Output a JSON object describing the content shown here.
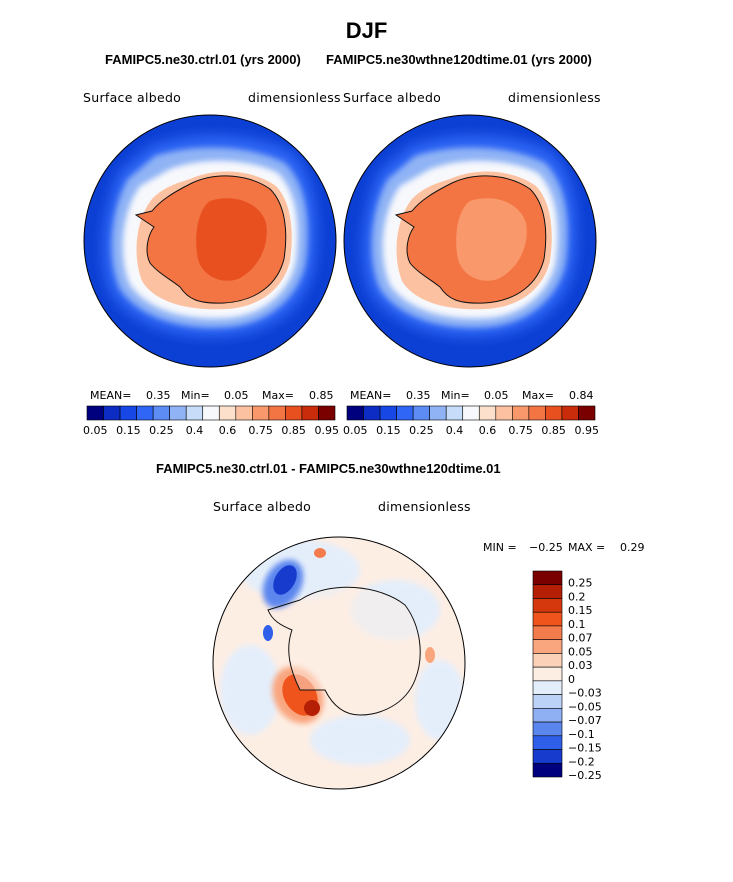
{
  "figure": {
    "title": "DJF",
    "top_left_subtitle": "FAMIPC5.ne30.ctrl.01 (yrs 2000)",
    "top_right_subtitle": "FAMIPC5.ne30wthne120dtime.01 (yrs 2000)",
    "diff_subtitle": "FAMIPC5.ne30.ctrl.01 - FAMIPC5.ne30wthne120dtime.01"
  },
  "panels": {
    "left": {
      "variable": "Surface albedo",
      "units": "dimensionless",
      "mean_label": "MEAN=",
      "mean": "0.35",
      "min_label": "Min=",
      "min": "0.05",
      "max_label": "Max=",
      "max": "0.85"
    },
    "right": {
      "variable": "Surface albedo",
      "units": "dimensionless",
      "mean_label": "MEAN=",
      "mean": "0.35",
      "min_label": "Min=",
      "min": "0.05",
      "max_label": "Max=",
      "max": "0.84"
    },
    "diff": {
      "variable": "Surface albedo",
      "units": "dimensionless",
      "min_label": "MIN =",
      "min": "−0.25",
      "max_label": "MAX =",
      "max": "0.29"
    }
  },
  "chart_data": [
    {
      "type": "heatmap",
      "projection": "south-polar-stereographic",
      "title": "FAMIPC5.ne30.ctrl.01 (yrs 2000)",
      "variable": "Surface albedo",
      "units": "dimensionless",
      "mean": 0.35,
      "min": 0.05,
      "max": 0.85,
      "colorbar_levels": [
        0.05,
        0.1,
        0.15,
        0.2,
        0.25,
        0.3,
        0.4,
        0.5,
        0.6,
        0.65,
        0.75,
        0.8,
        0.85,
        0.9,
        0.95
      ],
      "colorbar_tick_labels": [
        "0.05",
        "0.15",
        "0.25",
        "0.4",
        "0.6",
        "0.75",
        "0.85",
        "0.95"
      ]
    },
    {
      "type": "heatmap",
      "projection": "south-polar-stereographic",
      "title": "FAMIPC5.ne30wthne120dtime.01 (yrs 2000)",
      "variable": "Surface albedo",
      "units": "dimensionless",
      "mean": 0.35,
      "min": 0.05,
      "max": 0.84,
      "colorbar_levels": [
        0.05,
        0.1,
        0.15,
        0.2,
        0.25,
        0.3,
        0.4,
        0.5,
        0.6,
        0.65,
        0.75,
        0.8,
        0.85,
        0.9,
        0.95
      ],
      "colorbar_tick_labels": [
        "0.05",
        "0.15",
        "0.25",
        "0.4",
        "0.6",
        "0.75",
        "0.85",
        "0.95"
      ]
    },
    {
      "type": "heatmap",
      "projection": "south-polar-stereographic",
      "title": "FAMIPC5.ne30.ctrl.01 - FAMIPC5.ne30wthne120dtime.01",
      "variable": "Surface albedo",
      "units": "dimensionless",
      "min": -0.25,
      "max": 0.29,
      "colorbar_levels": [
        0.25,
        0.2,
        0.15,
        0.1,
        0.07,
        0.05,
        0.03,
        0,
        -0.03,
        -0.05,
        -0.07,
        -0.1,
        -0.15,
        -0.2,
        -0.25
      ],
      "colorbar_tick_labels": [
        "0.25",
        "0.2",
        "0.15",
        "0.1",
        "0.07",
        "0.05",
        "0.03",
        "0",
        "−0.03",
        "−0.05",
        "−0.07",
        "−0.1",
        "−0.15",
        "−0.2",
        "−0.25"
      ]
    }
  ],
  "colors": {
    "abs_scale": [
      "#00007f",
      "#0c2cc4",
      "#1748e6",
      "#2f66f5",
      "#5d8cf5",
      "#8fb3f5",
      "#c6dcf8",
      "#f6f8fc",
      "#fde0cc",
      "#fcc1a1",
      "#f9996b",
      "#f47544",
      "#e8501f",
      "#c92c0a",
      "#7a0000"
    ],
    "diff_scale": [
      "#7a0000",
      "#b41f06",
      "#d6380d",
      "#ef541c",
      "#f47b4c",
      "#f9a67f",
      "#fbd2b7",
      "#fdeee4",
      "#e4eefb",
      "#bcd2f6",
      "#8fb0f2",
      "#5b86ee",
      "#2f5ee8",
      "#173ccd",
      "#00007f"
    ],
    "ocean": "#0c3fd4",
    "ice_land": "#f2804e"
  }
}
